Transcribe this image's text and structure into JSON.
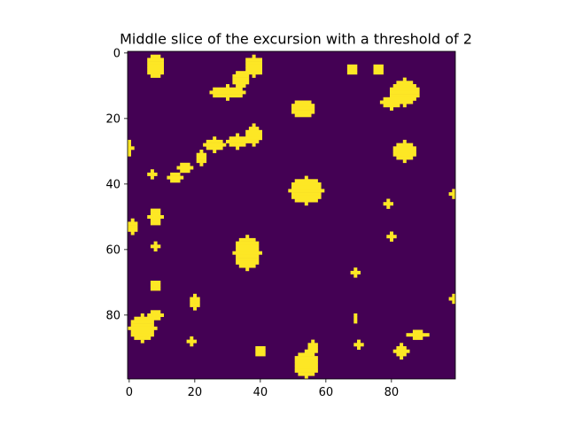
{
  "chart_data": {
    "type": "heatmap",
    "title": "Middle slice of the excursion with a threshold of 2",
    "xlabel": "",
    "ylabel": "",
    "grid": false,
    "legend": "none",
    "x_range": [
      0,
      99
    ],
    "y_range": [
      0,
      99
    ],
    "y_axis_inverted": true,
    "x_ticks": [
      0,
      20,
      40,
      60,
      80
    ],
    "y_ticks": [
      0,
      20,
      40,
      60,
      80
    ],
    "x_tick_labels": [
      "0",
      "20",
      "40",
      "60",
      "80"
    ],
    "y_tick_labels": [
      "0",
      "20",
      "40",
      "60",
      "80"
    ],
    "values_description": "binary mask: 1 where excursion exceeds threshold 2, else 0",
    "colors": {
      "background_0": "#440154",
      "foreground_1": "#fde725"
    },
    "regions": [
      {
        "cx": 8,
        "cy": 4,
        "rx": 2.6,
        "ry": 3.5
      },
      {
        "cx": 34,
        "cy": 8,
        "rx": 2.5,
        "ry": 2.5
      },
      {
        "cx": 38,
        "cy": 4,
        "rx": 2.8,
        "ry": 3
      },
      {
        "cx": 30,
        "cy": 12,
        "rx": 5,
        "ry": 2
      },
      {
        "cx": 68,
        "cy": 5,
        "rx": 1.5,
        "ry": 1.5
      },
      {
        "cx": 76,
        "cy": 5,
        "rx": 1.5,
        "ry": 1.5
      },
      {
        "cx": 84,
        "cy": 12,
        "rx": 4.5,
        "ry": 4
      },
      {
        "cx": 80,
        "cy": 15,
        "rx": 3,
        "ry": 2
      },
      {
        "cx": 53,
        "cy": 17,
        "rx": 3.5,
        "ry": 2.5
      },
      {
        "cx": 38,
        "cy": 25,
        "rx": 2.5,
        "ry": 3
      },
      {
        "cx": 33,
        "cy": 27,
        "rx": 3,
        "ry": 2
      },
      {
        "cx": 26,
        "cy": 28,
        "rx": 3,
        "ry": 2
      },
      {
        "cx": 22,
        "cy": 32,
        "rx": 1.5,
        "ry": 2
      },
      {
        "cx": 17,
        "cy": 35,
        "rx": 2,
        "ry": 1.5
      },
      {
        "cx": 14,
        "cy": 38,
        "rx": 2,
        "ry": 1.5
      },
      {
        "cx": 84,
        "cy": 30,
        "rx": 3.5,
        "ry": 3
      },
      {
        "cx": 54,
        "cy": 42,
        "rx": 5,
        "ry": 4
      },
      {
        "cx": 7,
        "cy": 37,
        "rx": 1,
        "ry": 1
      },
      {
        "cx": 8,
        "cy": 50,
        "rx": 2,
        "ry": 2.5
      },
      {
        "cx": 1,
        "cy": 53,
        "rx": 1.2,
        "ry": 2.5
      },
      {
        "cx": 0,
        "cy": 29,
        "rx": 1,
        "ry": 2
      },
      {
        "cx": 36,
        "cy": 61,
        "rx": 4,
        "ry": 5
      },
      {
        "cx": 8,
        "cy": 59,
        "rx": 1,
        "ry": 1.5
      },
      {
        "cx": 79,
        "cy": 46,
        "rx": 1.2,
        "ry": 1
      },
      {
        "cx": 80,
        "cy": 56,
        "rx": 1.2,
        "ry": 1
      },
      {
        "cx": 99,
        "cy": 43,
        "rx": 1,
        "ry": 1
      },
      {
        "cx": 8,
        "cy": 71,
        "rx": 1.5,
        "ry": 1.5
      },
      {
        "cx": 20,
        "cy": 76,
        "rx": 1.5,
        "ry": 2.5
      },
      {
        "cx": 69,
        "cy": 67,
        "rx": 1.2,
        "ry": 1.5
      },
      {
        "cx": 99,
        "cy": 75,
        "rx": 1,
        "ry": 1.5
      },
      {
        "cx": 4,
        "cy": 84,
        "rx": 4,
        "ry": 4
      },
      {
        "cx": 8,
        "cy": 80,
        "rx": 2,
        "ry": 1.5
      },
      {
        "cx": 19,
        "cy": 88,
        "rx": 1,
        "ry": 1
      },
      {
        "cx": 69,
        "cy": 81,
        "rx": 0.7,
        "ry": 1
      },
      {
        "cx": 70,
        "cy": 89,
        "rx": 1,
        "ry": 1
      },
      {
        "cx": 83,
        "cy": 91,
        "rx": 2,
        "ry": 2
      },
      {
        "cx": 88,
        "cy": 86,
        "rx": 3.5,
        "ry": 1.2
      },
      {
        "cx": 40,
        "cy": 91,
        "rx": 1.5,
        "ry": 1.5
      },
      {
        "cx": 54,
        "cy": 95,
        "rx": 3.5,
        "ry": 4
      },
      {
        "cx": 56,
        "cy": 90,
        "rx": 1.5,
        "ry": 2
      }
    ]
  }
}
